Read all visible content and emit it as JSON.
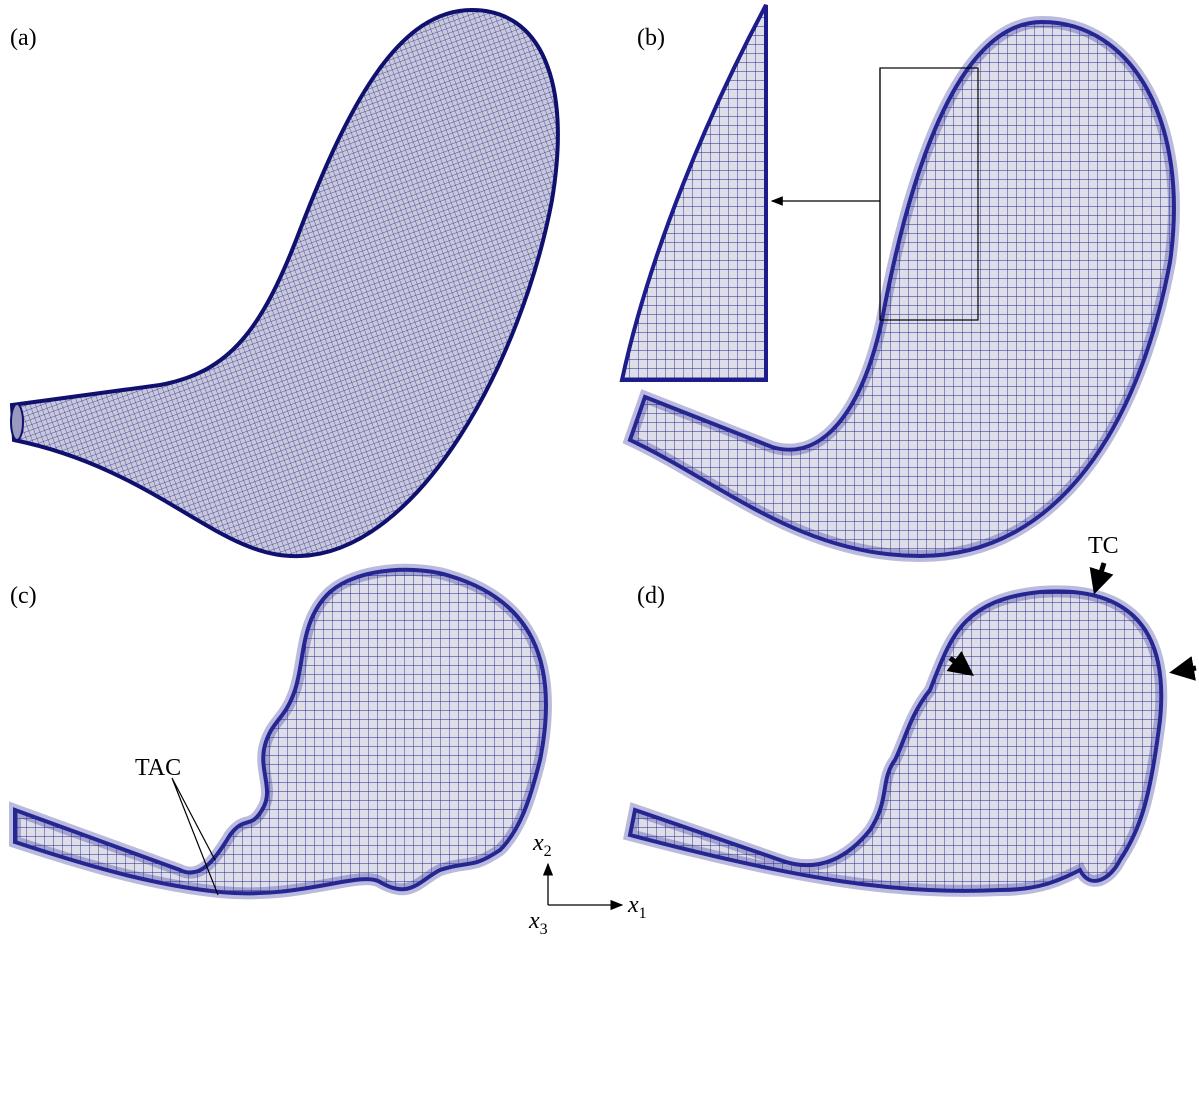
{
  "panels": [
    {
      "label": "(a)"
    },
    {
      "label": "(b)"
    },
    {
      "label": "(c)"
    },
    {
      "label": "(d)"
    }
  ],
  "annotations": {
    "tac": "TAC",
    "tc": "TC"
  },
  "axes": {
    "vertical": {
      "symbol": "x",
      "index": "2"
    },
    "horizontal": {
      "symbol": "x",
      "index": "1"
    },
    "normal": {
      "symbol": "x",
      "index": "3"
    }
  }
}
